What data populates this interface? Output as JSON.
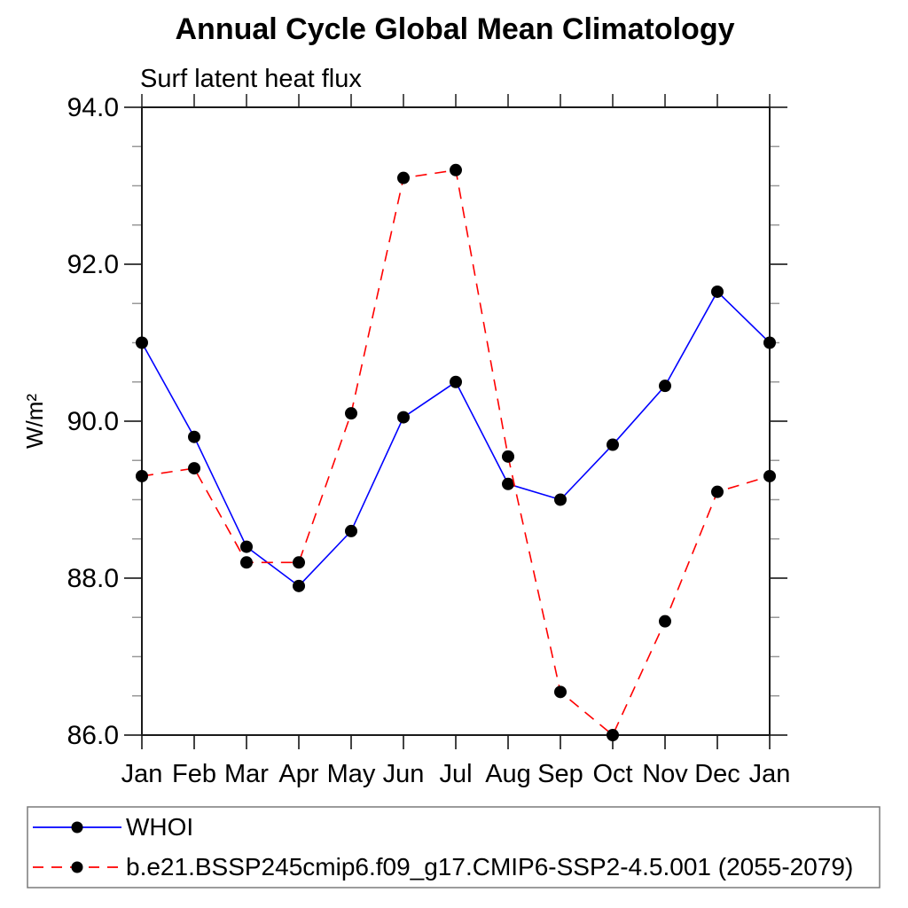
{
  "chart_data": {
    "type": "line",
    "title": "Annual Cycle Global Mean Climatology",
    "subtitle": "Surf latent heat flux",
    "ylabel": "W/m²",
    "xlabel": "",
    "x_categories": [
      "Jan",
      "Feb",
      "Mar",
      "Apr",
      "May",
      "Jun",
      "Jul",
      "Aug",
      "Sep",
      "Oct",
      "Nov",
      "Dec",
      "Jan"
    ],
    "ylim": [
      86.0,
      94.0
    ],
    "yticks_major": [
      {
        "value": 86.0,
        "label": "86.0"
      },
      {
        "value": 88.0,
        "label": "88.0"
      },
      {
        "value": 90.0,
        "label": "90.0"
      },
      {
        "value": 92.0,
        "label": "92.0"
      },
      {
        "value": 94.0,
        "label": "94.0"
      }
    ],
    "ytick_minor_step": 0.5,
    "grid": false,
    "legend_position": "bottom-left-box",
    "series": [
      {
        "id": "whoi",
        "name": "WHOI",
        "color": "#0000ff",
        "style": "solid",
        "marker": "filled-circle",
        "marker_color": "#000000",
        "values": [
          91.0,
          89.8,
          88.4,
          87.9,
          88.6,
          90.05,
          90.5,
          89.2,
          89.0,
          89.7,
          90.45,
          91.65,
          91.0
        ]
      },
      {
        "id": "model",
        "name": "b.e21.BSSP245cmip6.f09_g17.CMIP6-SSP2-4.5.001 (2055-2079)",
        "color": "#ff0000",
        "style": "dashed",
        "marker": "filled-circle",
        "marker_color": "#000000",
        "values": [
          89.3,
          89.4,
          88.2,
          88.2,
          90.1,
          93.1,
          93.2,
          89.55,
          86.55,
          86.0,
          87.45,
          89.1,
          89.3
        ]
      }
    ]
  }
}
